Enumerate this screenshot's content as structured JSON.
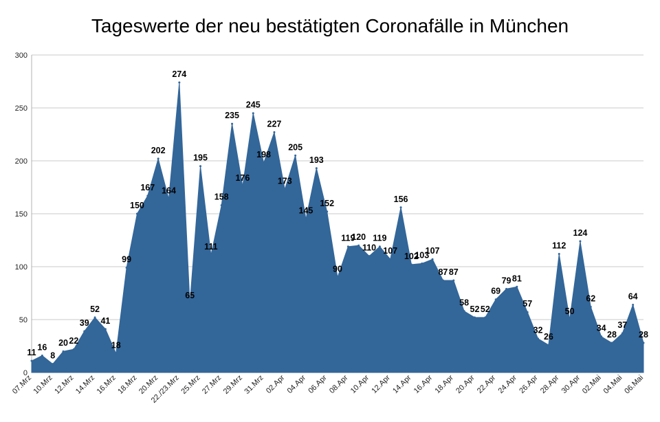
{
  "chart_data": {
    "type": "area",
    "title": "Tageswerte der neu bestätigten Coronafälle in München",
    "xlabel": "",
    "ylabel": "",
    "ylim": [
      0,
      300
    ],
    "yticks": [
      0,
      50,
      100,
      150,
      200,
      250,
      300
    ],
    "grid": true,
    "legend": "none",
    "color": "#336699",
    "x_tick_labels": [
      "07.Mrz",
      "10.Mrz",
      "12.Mrz",
      "14.Mrz",
      "16.Mrz",
      "18.Mrz",
      "20.Mrz",
      "22./23.Mrz",
      "25.Mrz",
      "27.Mrz",
      "29.Mrz",
      "31.Mrz",
      "02.Apr",
      "04.Apr",
      "06.Apr",
      "08.Apr",
      "10.Apr",
      "12.Apr",
      "14.Apr",
      "16.Apr",
      "18.Apr",
      "20.Apr",
      "22.Apr",
      "24.Apr",
      "26.Apr",
      "28.Apr",
      "30.Apr",
      "02.Mai",
      "04.Mai",
      "06.Mai"
    ],
    "values": [
      11,
      16,
      8,
      20,
      22,
      39,
      52,
      41,
      18,
      99,
      150,
      167,
      202,
      164,
      274,
      65,
      195,
      111,
      158,
      235,
      176,
      245,
      198,
      227,
      173,
      205,
      145,
      193,
      152,
      90,
      119,
      120,
      110,
      119,
      107,
      156,
      102,
      103,
      107,
      87,
      87,
      58,
      52,
      52,
      69,
      79,
      81,
      57,
      32,
      26,
      112,
      50,
      124,
      62,
      34,
      28,
      37,
      64,
      28
    ]
  }
}
